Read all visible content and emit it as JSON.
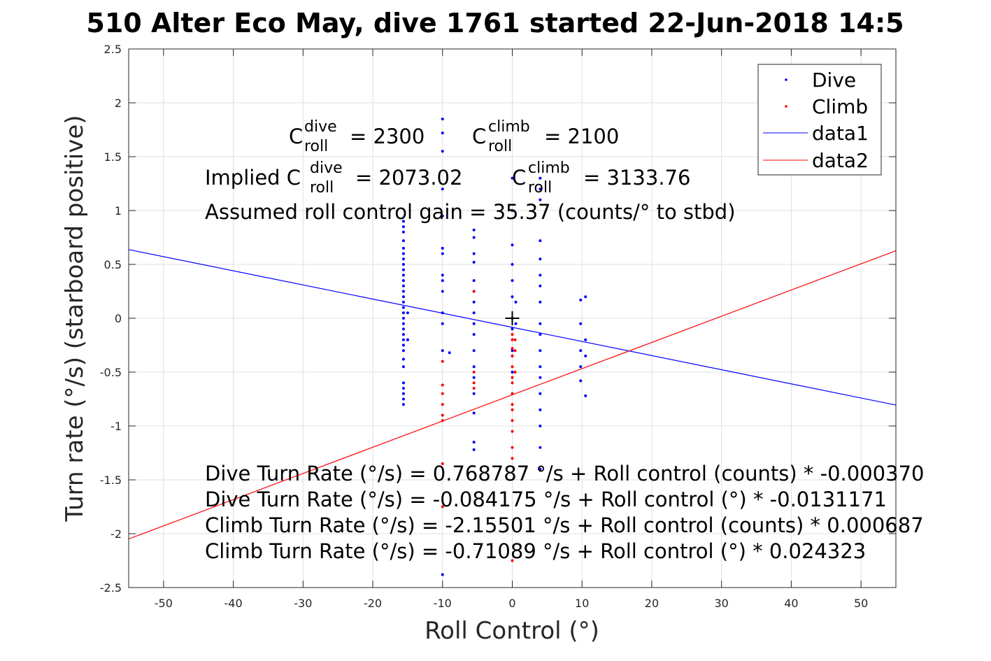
{
  "chart_data": {
    "type": "scatter",
    "title": "510 Alter Eco May, dive 1761 started 22-Jun-2018 14:5",
    "xlabel": "Roll Control (°)",
    "ylabel": "Turn rate (°/s) (starboard positive)",
    "xlim": [
      -55,
      55
    ],
    "ylim": [
      -2.5,
      2.5
    ],
    "xticks": [
      -50,
      -40,
      -30,
      -20,
      -10,
      0,
      10,
      20,
      30,
      40,
      50
    ],
    "xtick_labels": [
      "-50",
      "-40",
      "-30",
      "-20",
      "-10",
      "0",
      "10",
      "20",
      "30",
      "40",
      "50"
    ],
    "yticks": [
      -2.5,
      -2,
      -1.5,
      -1,
      -0.5,
      0,
      0.5,
      1,
      1.5,
      2,
      2.5
    ],
    "ytick_labels": [
      "-2.5",
      "-2",
      "-1.5",
      "-1",
      "-0.5",
      "0",
      "0.5",
      "1",
      "1.5",
      "2",
      "2.5"
    ],
    "grid": true,
    "legend_position": "top-right",
    "series": [
      {
        "name": "Dive",
        "kind": "points",
        "color": "#0000ff",
        "groups": [
          {
            "x": -15.6,
            "y": [
              0.9,
              0.85,
              0.8,
              0.72,
              0.65,
              0.6,
              0.55,
              0.5,
              0.45,
              0.4,
              0.35,
              0.3,
              0.25,
              0.2,
              0.15,
              0.1,
              0.05,
              0.0,
              -0.05,
              -0.1,
              -0.15,
              -0.2,
              -0.25,
              -0.3,
              -0.38,
              -0.45,
              -0.6,
              -0.65,
              -0.7,
              -0.75,
              -0.8
            ]
          },
          {
            "x": -15.0,
            "y": [
              0.05,
              -0.2,
              -0.2
            ]
          },
          {
            "x": -10.0,
            "y": [
              1.85,
              1.72,
              1.55,
              1.2,
              0.95,
              0.65,
              0.6,
              0.4,
              0.35,
              0.25,
              0.05,
              -0.05,
              -0.3,
              -2.38
            ]
          },
          {
            "x": -9.0,
            "y": [
              -0.32
            ]
          },
          {
            "x": -5.5,
            "y": [
              0.82,
              0.75,
              0.6,
              0.52,
              0.35,
              0.25,
              0.15,
              0.05,
              -0.05,
              -0.15,
              -0.3,
              -0.45,
              -0.55,
              -0.7,
              -0.88,
              -1.15,
              -1.22
            ]
          },
          {
            "x": 0.0,
            "y": [
              1.3,
              1.0,
              0.68,
              0.5,
              0.35,
              0.2,
              0.0,
              -0.1,
              -0.3,
              -0.35,
              -0.5
            ]
          },
          {
            "x": 0.5,
            "y": [
              0.15,
              -0.05
            ]
          },
          {
            "x": 4.0,
            "y": [
              1.3,
              1.2,
              1.1,
              0.72,
              0.55,
              0.4,
              0.3,
              0.15,
              -0.05,
              -0.15,
              -0.3,
              -0.45,
              -0.55,
              -0.7,
              -0.85,
              -1.0,
              -1.2,
              -1.4
            ]
          },
          {
            "x": 9.8,
            "y": [
              0.17,
              -0.05,
              -0.3,
              -0.45,
              -0.58
            ]
          },
          {
            "x": 10.5,
            "y": [
              0.2,
              -0.2,
              -0.35,
              -0.72
            ]
          }
        ]
      },
      {
        "name": "Climb",
        "kind": "points",
        "color": "#ff0000",
        "groups": [
          {
            "x": -10.0,
            "y": [
              -0.4,
              -0.62,
              -0.7,
              -0.8,
              -0.9,
              -0.95,
              -1.35,
              -1.75
            ]
          },
          {
            "x": -5.5,
            "y": [
              0.25,
              -0.5,
              -0.6,
              -0.65
            ]
          },
          {
            "x": 0.0,
            "y": [
              -0.15,
              -0.2,
              -0.28,
              -0.35,
              -0.45,
              -0.55,
              -0.6,
              -0.7,
              -0.8,
              -0.85,
              -0.95,
              -1.05,
              -1.2,
              -1.3,
              -2.25
            ]
          },
          {
            "x": 0.4,
            "y": [
              -0.2,
              -0.3,
              -0.5
            ]
          }
        ]
      },
      {
        "name": "data1",
        "kind": "line",
        "color": "#0000ff",
        "x": [
          -55,
          55
        ],
        "y": [
          0.6374,
          -0.8058
        ]
      },
      {
        "name": "data2",
        "kind": "line",
        "color": "#ff0000",
        "x": [
          -55,
          55
        ],
        "y": [
          -2.0487,
          0.6269
        ]
      }
    ],
    "marker": {
      "x": 0.0,
      "y": 0.0,
      "symbol": "+"
    },
    "annotations": {
      "c_roll_dive": {
        "prefix": "C",
        "sup": "dive",
        "sub": "roll",
        "value": "= 2300"
      },
      "c_roll_climb": {
        "prefix": "C",
        "sup": "climb",
        "sub": "roll",
        "value": "= 2100"
      },
      "implied_dive": {
        "prefix": "Implied C",
        "sup": "dive",
        "sub": "roll",
        "value": "= 2073.02"
      },
      "implied_climb": {
        "prefix": "C",
        "sup": "climb",
        "sub": "roll",
        "value": "= 3133.76"
      },
      "gain": "Assumed roll control gain = 35.37 (counts/° to stbd)",
      "fits": [
        "Dive Turn Rate (°/s) = 0.768787 °/s + Roll control (counts) * -0.000370",
        "Dive Turn Rate (°/s) = -0.084175 °/s + Roll control (°) * -0.0131171",
        "Climb Turn Rate (°/s) = -2.15501 °/s + Roll control (counts) * 0.000687",
        "Climb Turn Rate (°/s) = -0.71089 °/s + Roll control (°) * 0.024323"
      ]
    }
  }
}
